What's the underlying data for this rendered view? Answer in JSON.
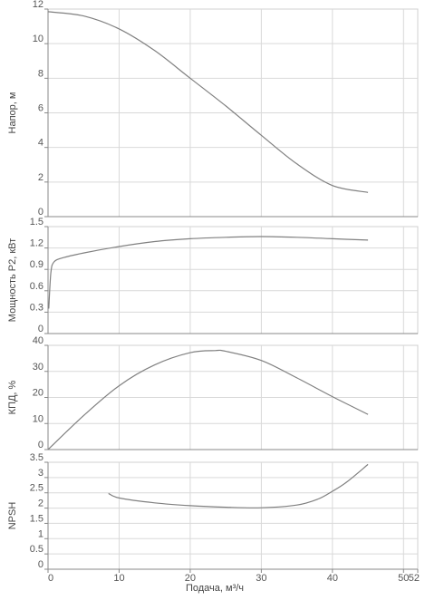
{
  "chart_data": [
    {
      "type": "line",
      "ylabel": "Напор, м",
      "xlim": [
        0,
        52
      ],
      "ylim": [
        0,
        12
      ],
      "yticks": [
        "0",
        "2",
        "4",
        "6",
        "8",
        "10",
        "12"
      ],
      "x": [
        0,
        5,
        10,
        15,
        20,
        25,
        30,
        35,
        40,
        45
      ],
      "y": [
        11.85,
        11.6,
        10.85,
        9.6,
        8.0,
        6.4,
        4.7,
        3.05,
        1.8,
        1.4
      ],
      "grid": true
    },
    {
      "type": "line",
      "ylabel": "Мощность P2, кВт",
      "xlim": [
        0,
        52
      ],
      "ylim": [
        0,
        1.5
      ],
      "yticks": [
        "0",
        "0.3",
        "0.6",
        "0.9",
        "1.2",
        "1.5"
      ],
      "x": [
        0.1,
        0.4,
        0.8,
        2,
        5,
        10,
        15,
        20,
        25,
        30,
        35,
        40,
        45
      ],
      "y": [
        0.35,
        0.85,
        1.0,
        1.06,
        1.13,
        1.22,
        1.29,
        1.33,
        1.35,
        1.36,
        1.35,
        1.33,
        1.31
      ],
      "grid": true
    },
    {
      "type": "line",
      "ylabel": "КПД, %",
      "xlim": [
        0,
        52
      ],
      "ylim": [
        0,
        40
      ],
      "yticks": [
        "0",
        "10",
        "20",
        "30",
        "40"
      ],
      "x": [
        0,
        5,
        10,
        15,
        20,
        23.5,
        25,
        30,
        35,
        40,
        45
      ],
      "y": [
        0,
        13,
        24.5,
        32.5,
        37.2,
        38.0,
        37.7,
        34.2,
        27.5,
        20.3,
        13.5
      ],
      "grid": true
    },
    {
      "type": "line",
      "ylabel": "NPSH",
      "xlabel": "Подача, м³/ч",
      "xlim": [
        0,
        52
      ],
      "ylim": [
        0,
        3.5
      ],
      "yticks": [
        "0",
        "0.5",
        "1",
        "1.5",
        "2",
        "2.5",
        "3",
        "3.5"
      ],
      "xticks": [
        "0",
        "10",
        "20",
        "30",
        "40",
        "50",
        "52"
      ],
      "x": [
        8.5,
        10,
        15,
        20,
        25,
        30,
        35,
        38,
        40,
        42,
        45
      ],
      "y": [
        2.48,
        2.33,
        2.17,
        2.08,
        2.03,
        2.01,
        2.1,
        2.3,
        2.55,
        2.85,
        3.43
      ],
      "grid": true
    }
  ]
}
